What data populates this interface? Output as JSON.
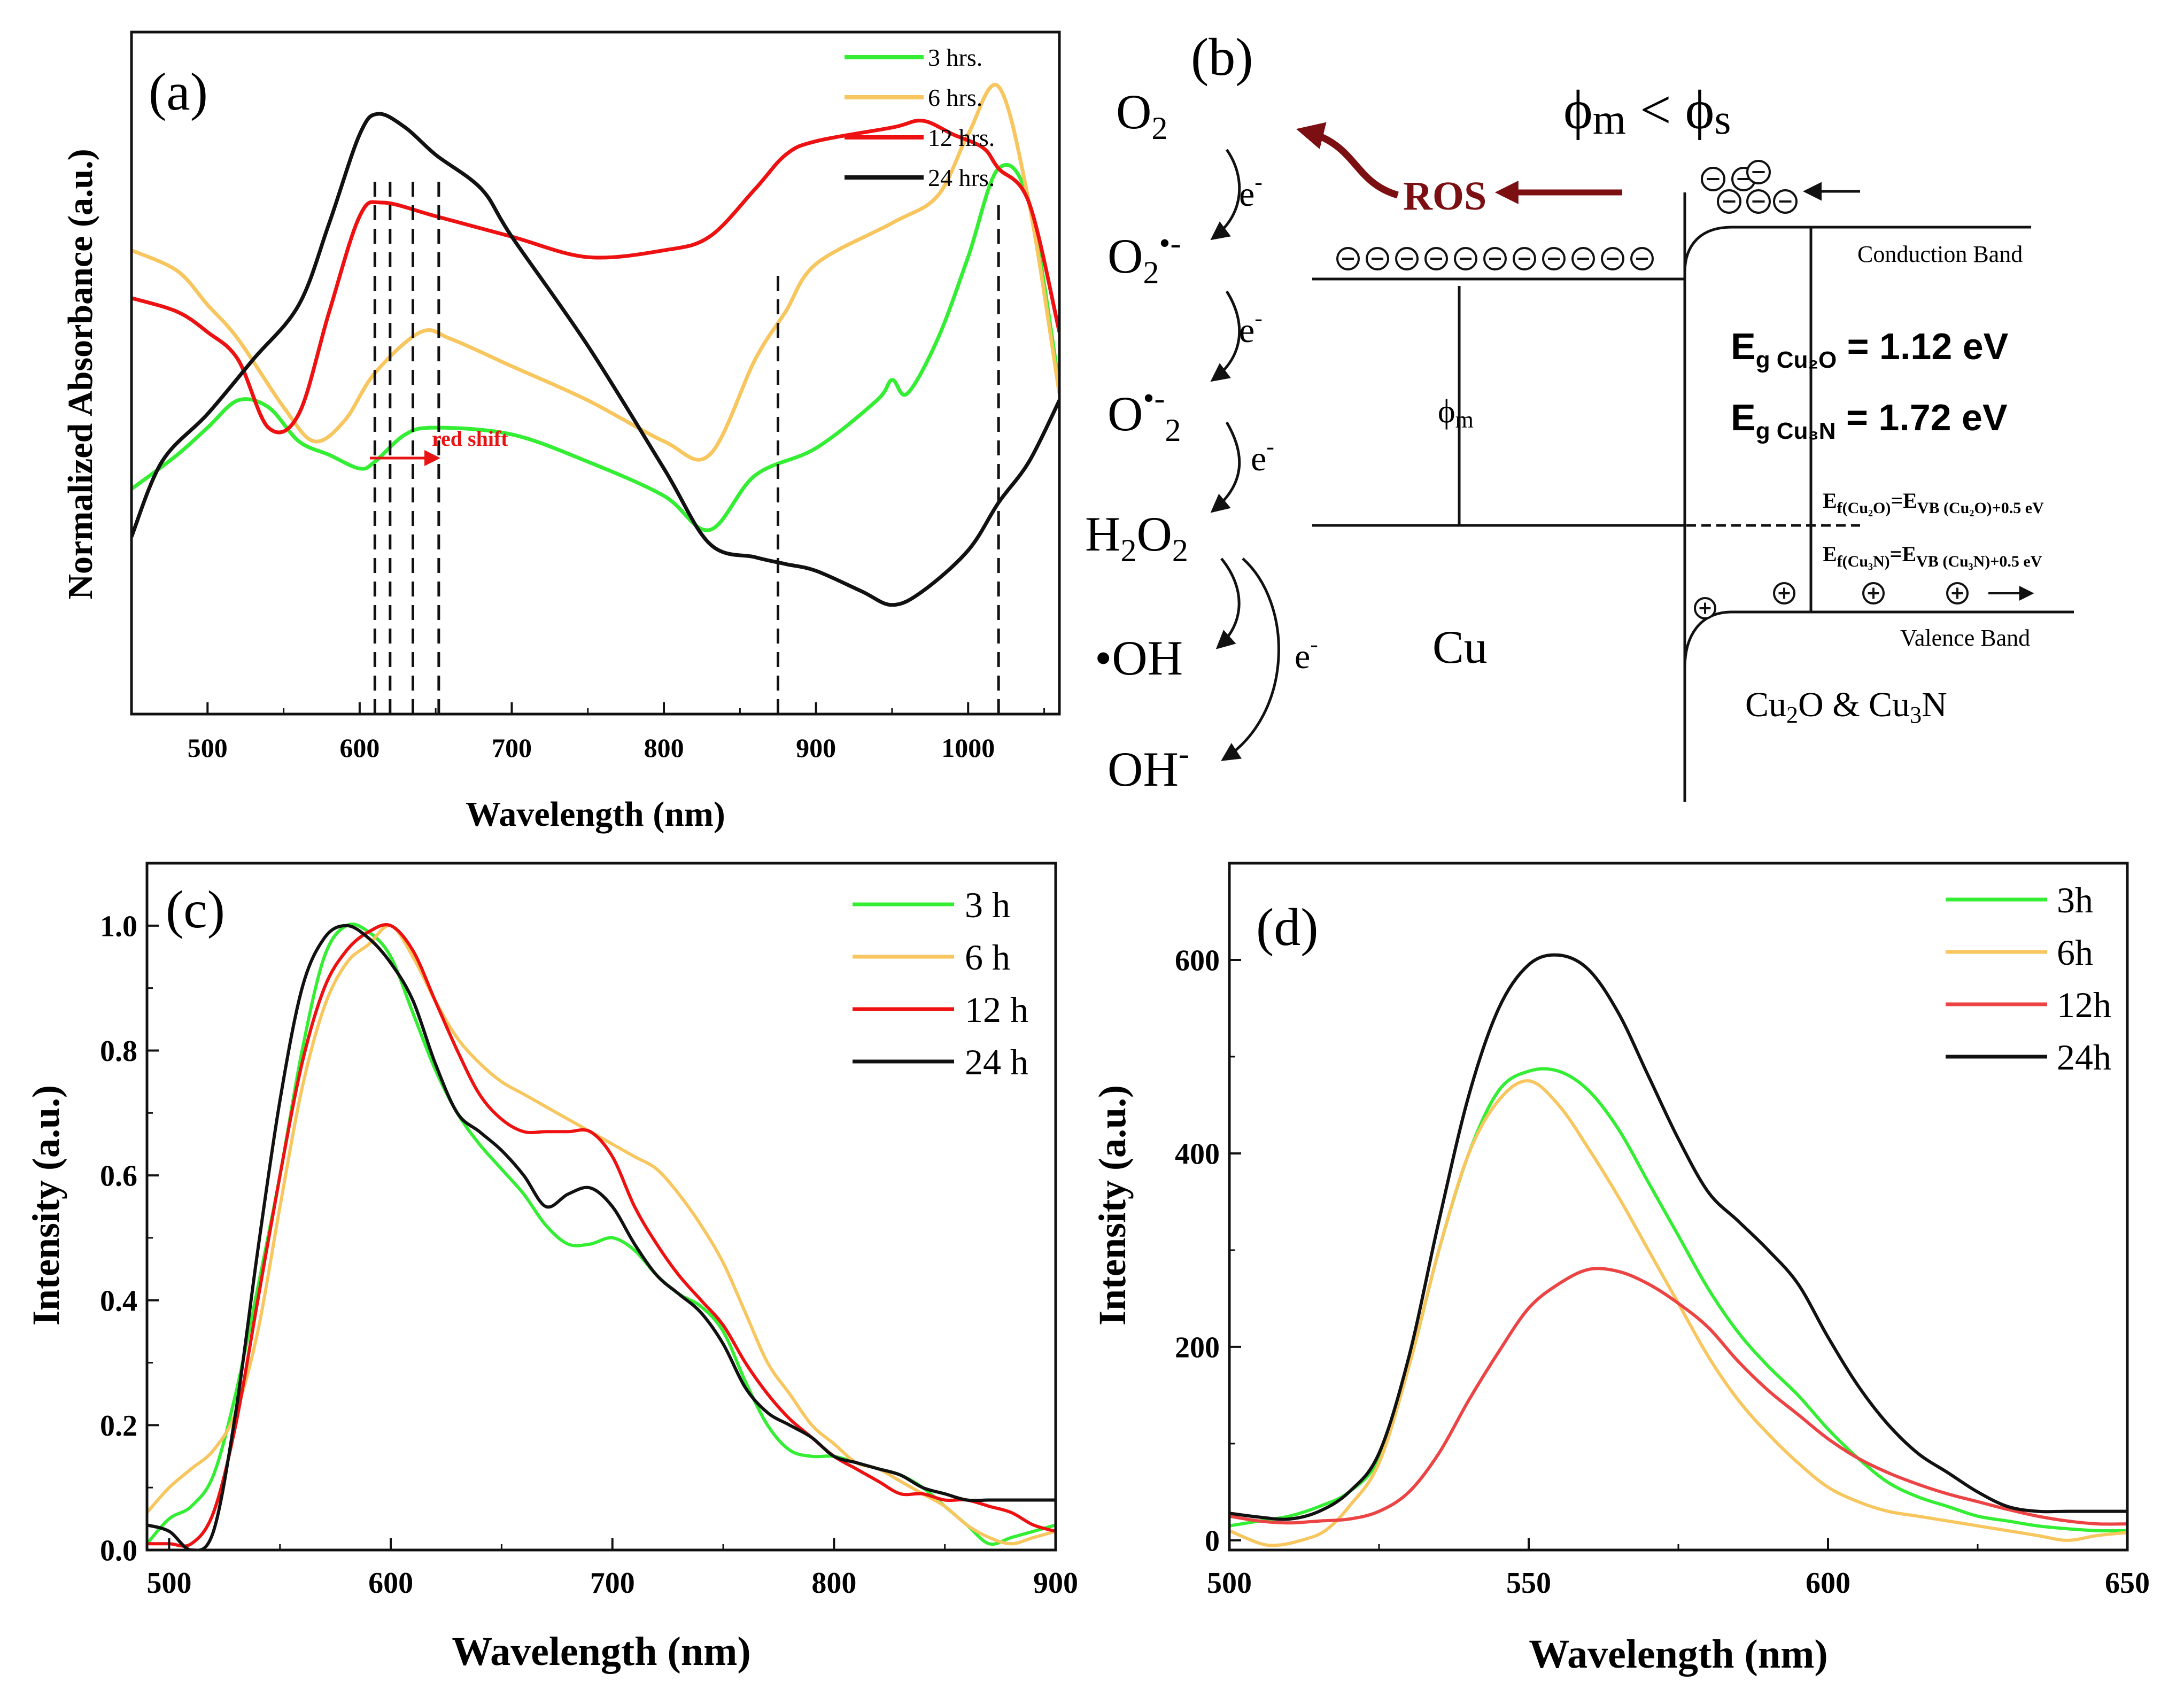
{
  "colors": {
    "green": "#33ee33",
    "yellow": "#f7c65e",
    "red": "#ee1111",
    "black": "#111111",
    "ros": "#7b0f12",
    "redshift": "#e81313",
    "d_yellow": "#e3c83a",
    "d_red": "#ec4444"
  },
  "chart_data": [
    {
      "type": "line",
      "panel": "(a)",
      "xlabel": "Wavelength (nm)",
      "ylabel": "Normalized Absorbance (a.u.)",
      "xlim": [
        450,
        1060
      ],
      "ylim": [
        0,
        1
      ],
      "xticks": [
        "500",
        "600",
        "700",
        "800",
        "900",
        "1000"
      ],
      "legend": [
        "3 hrs.",
        "6 hrs.",
        "12 hrs.",
        "24 hrs."
      ],
      "annotation": "red shift",
      "dashed_lines": [
        610,
        620,
        635,
        652,
        875,
        1020
      ],
      "series": [
        {
          "name": "3 hrs.",
          "color": "green",
          "x": [
            450,
            480,
            500,
            520,
            540,
            560,
            580,
            600,
            610,
            630,
            650,
            700,
            750,
            800,
            830,
            860,
            900,
            940,
            950,
            960,
            980,
            1000,
            1020,
            1040,
            1060
          ],
          "y": [
            0.33,
            0.38,
            0.42,
            0.46,
            0.45,
            0.4,
            0.38,
            0.36,
            0.37,
            0.41,
            0.42,
            0.41,
            0.37,
            0.32,
            0.27,
            0.35,
            0.39,
            0.46,
            0.49,
            0.47,
            0.55,
            0.67,
            0.8,
            0.75,
            0.48
          ]
        },
        {
          "name": "6 hrs.",
          "color": "yellow",
          "x": [
            450,
            480,
            500,
            520,
            550,
            570,
            590,
            610,
            640,
            660,
            700,
            750,
            800,
            830,
            860,
            880,
            900,
            950,
            980,
            1000,
            1020,
            1040,
            1060
          ],
          "y": [
            0.68,
            0.65,
            0.6,
            0.55,
            0.45,
            0.4,
            0.43,
            0.5,
            0.56,
            0.55,
            0.51,
            0.46,
            0.4,
            0.38,
            0.52,
            0.59,
            0.66,
            0.72,
            0.76,
            0.85,
            0.92,
            0.75,
            0.47
          ]
        },
        {
          "name": "12 hrs.",
          "color": "red",
          "x": [
            450,
            480,
            500,
            520,
            540,
            560,
            580,
            600,
            615,
            650,
            700,
            750,
            800,
            830,
            860,
            880,
            900,
            950,
            970,
            990,
            1010,
            1020,
            1040,
            1060
          ],
          "y": [
            0.61,
            0.59,
            0.56,
            0.52,
            0.42,
            0.44,
            0.59,
            0.73,
            0.75,
            0.73,
            0.7,
            0.67,
            0.68,
            0.7,
            0.77,
            0.82,
            0.84,
            0.86,
            0.87,
            0.85,
            0.83,
            0.8,
            0.75,
            0.56
          ]
        },
        {
          "name": "24 hrs.",
          "color": "black",
          "x": [
            450,
            470,
            500,
            530,
            560,
            580,
            600,
            612,
            630,
            650,
            680,
            700,
            750,
            800,
            830,
            860,
            880,
            900,
            930,
            950,
            970,
            1000,
            1020,
            1040,
            1060
          ],
          "y": [
            0.26,
            0.37,
            0.44,
            0.52,
            0.6,
            0.72,
            0.85,
            0.88,
            0.86,
            0.82,
            0.77,
            0.7,
            0.54,
            0.36,
            0.25,
            0.23,
            0.22,
            0.21,
            0.18,
            0.16,
            0.18,
            0.24,
            0.31,
            0.37,
            0.46
          ]
        }
      ]
    },
    {
      "type": "line",
      "panel": "(c)",
      "xlabel": "Wavelength (nm)",
      "ylabel": "Intensity (a.u.)",
      "xlim": [
        490,
        900
      ],
      "ylim": [
        0,
        1.1
      ],
      "xticks": [
        "500",
        "600",
        "700",
        "800",
        "900"
      ],
      "yticks": [
        "0.0",
        "0.2",
        "0.4",
        "0.6",
        "0.8",
        "1.0"
      ],
      "legend": [
        "3 h",
        "6 h",
        "12 h",
        "24 h"
      ],
      "series": [
        {
          "name": "3 h",
          "color": "green",
          "x": [
            490,
            500,
            510,
            520,
            530,
            540,
            550,
            560,
            570,
            580,
            590,
            600,
            610,
            620,
            630,
            640,
            650,
            660,
            670,
            680,
            690,
            700,
            710,
            720,
            730,
            740,
            750,
            760,
            770,
            780,
            790,
            800,
            810,
            820,
            830,
            840,
            850,
            860,
            870,
            880,
            890,
            900
          ],
          "y": [
            0.01,
            0.05,
            0.07,
            0.12,
            0.25,
            0.42,
            0.6,
            0.8,
            0.95,
            1.0,
            0.99,
            0.95,
            0.86,
            0.77,
            0.7,
            0.65,
            0.61,
            0.57,
            0.52,
            0.49,
            0.49,
            0.5,
            0.48,
            0.44,
            0.41,
            0.39,
            0.35,
            0.27,
            0.2,
            0.16,
            0.15,
            0.15,
            0.14,
            0.13,
            0.12,
            0.1,
            0.07,
            0.04,
            0.01,
            0.02,
            0.03,
            0.04
          ]
        },
        {
          "name": "6 h",
          "color": "yellow",
          "x": [
            490,
            500,
            510,
            520,
            530,
            540,
            550,
            560,
            570,
            580,
            590,
            600,
            610,
            620,
            630,
            640,
            650,
            660,
            670,
            680,
            690,
            700,
            710,
            720,
            730,
            740,
            750,
            760,
            770,
            780,
            790,
            800,
            810,
            820,
            830,
            840,
            850,
            860,
            870,
            880,
            890,
            900
          ],
          "y": [
            0.06,
            0.1,
            0.13,
            0.16,
            0.22,
            0.35,
            0.55,
            0.74,
            0.87,
            0.94,
            0.97,
            1.0,
            0.95,
            0.88,
            0.82,
            0.78,
            0.75,
            0.73,
            0.71,
            0.69,
            0.67,
            0.65,
            0.63,
            0.61,
            0.57,
            0.52,
            0.46,
            0.38,
            0.3,
            0.25,
            0.2,
            0.17,
            0.14,
            0.13,
            0.11,
            0.09,
            0.07,
            0.04,
            0.02,
            0.01,
            0.02,
            0.03
          ]
        },
        {
          "name": "12 h",
          "color": "red",
          "x": [
            490,
            500,
            510,
            520,
            530,
            540,
            550,
            560,
            570,
            580,
            590,
            600,
            610,
            620,
            630,
            640,
            650,
            660,
            670,
            680,
            690,
            700,
            710,
            720,
            730,
            740,
            750,
            760,
            770,
            780,
            790,
            800,
            810,
            820,
            830,
            840,
            850,
            860,
            870,
            880,
            890,
            900
          ],
          "y": [
            0.01,
            0.01,
            0.01,
            0.06,
            0.2,
            0.4,
            0.6,
            0.78,
            0.9,
            0.96,
            0.99,
            1.0,
            0.96,
            0.88,
            0.8,
            0.73,
            0.69,
            0.67,
            0.67,
            0.67,
            0.67,
            0.63,
            0.55,
            0.49,
            0.44,
            0.4,
            0.36,
            0.3,
            0.25,
            0.21,
            0.18,
            0.15,
            0.13,
            0.11,
            0.09,
            0.09,
            0.08,
            0.08,
            0.07,
            0.06,
            0.04,
            0.03
          ]
        },
        {
          "name": "24 h",
          "color": "black",
          "x": [
            490,
            500,
            510,
            520,
            530,
            540,
            550,
            560,
            570,
            580,
            590,
            600,
            610,
            620,
            630,
            640,
            650,
            660,
            670,
            680,
            690,
            700,
            710,
            720,
            730,
            740,
            750,
            760,
            770,
            780,
            790,
            800,
            810,
            820,
            830,
            840,
            850,
            860,
            870,
            880,
            890,
            900
          ],
          "y": [
            0.04,
            0.03,
            0.0,
            0.03,
            0.22,
            0.48,
            0.72,
            0.9,
            0.98,
            1.0,
            0.98,
            0.94,
            0.88,
            0.78,
            0.7,
            0.67,
            0.64,
            0.6,
            0.55,
            0.57,
            0.58,
            0.55,
            0.49,
            0.44,
            0.41,
            0.38,
            0.33,
            0.26,
            0.22,
            0.2,
            0.18,
            0.15,
            0.14,
            0.13,
            0.12,
            0.1,
            0.09,
            0.08,
            0.08,
            0.08,
            0.08,
            0.08
          ]
        }
      ]
    },
    {
      "type": "line",
      "panel": "(d)",
      "xlabel": "Wavelength (nm)",
      "ylabel": "Intensity (a.u.)",
      "xlim": [
        500,
        650
      ],
      "ylim": [
        -10,
        700
      ],
      "xticks": [
        "500",
        "550",
        "600",
        "650"
      ],
      "yticks": [
        "0",
        "200",
        "400",
        "600"
      ],
      "legend": [
        "3h",
        "6h",
        "12h",
        "24h"
      ],
      "series": [
        {
          "name": "3h",
          "color": "green",
          "x": [
            500,
            505,
            510,
            515,
            520,
            525,
            530,
            535,
            540,
            545,
            550,
            555,
            560,
            565,
            570,
            575,
            580,
            585,
            590,
            595,
            600,
            605,
            610,
            615,
            620,
            625,
            630,
            635,
            640,
            645,
            650
          ],
          "y": [
            15,
            20,
            25,
            35,
            50,
            85,
            180,
            300,
            400,
            465,
            485,
            485,
            465,
            425,
            370,
            315,
            260,
            215,
            180,
            150,
            115,
            85,
            60,
            45,
            35,
            25,
            20,
            15,
            12,
            10,
            10
          ]
        },
        {
          "name": "6h",
          "color": "yellow",
          "x": [
            500,
            505,
            508,
            512,
            516,
            520,
            525,
            530,
            535,
            540,
            545,
            550,
            555,
            560,
            565,
            570,
            575,
            580,
            585,
            590,
            595,
            600,
            605,
            610,
            615,
            620,
            625,
            630,
            635,
            640,
            645,
            650
          ],
          "y": [
            10,
            -3,
            -5,
            0,
            10,
            35,
            80,
            180,
            300,
            400,
            455,
            475,
            450,
            405,
            355,
            300,
            245,
            190,
            145,
            110,
            80,
            55,
            40,
            30,
            25,
            20,
            15,
            10,
            5,
            0,
            5,
            8
          ]
        },
        {
          "name": "12h",
          "color": "d_red",
          "x": [
            500,
            505,
            510,
            515,
            520,
            525,
            530,
            535,
            540,
            545,
            550,
            555,
            560,
            565,
            570,
            575,
            580,
            585,
            590,
            595,
            600,
            605,
            610,
            615,
            620,
            625,
            630,
            635,
            640,
            645,
            650
          ],
          "y": [
            25,
            20,
            18,
            20,
            22,
            30,
            50,
            90,
            145,
            195,
            240,
            265,
            280,
            278,
            265,
            245,
            220,
            185,
            155,
            130,
            105,
            85,
            70,
            58,
            48,
            40,
            32,
            25,
            20,
            17,
            17
          ]
        },
        {
          "name": "24h",
          "color": "black",
          "x": [
            500,
            505,
            510,
            515,
            520,
            525,
            530,
            535,
            540,
            545,
            550,
            555,
            560,
            565,
            570,
            575,
            580,
            585,
            590,
            595,
            600,
            605,
            610,
            615,
            620,
            625,
            630,
            635,
            640,
            645,
            650
          ],
          "y": [
            28,
            24,
            22,
            30,
            50,
            90,
            190,
            330,
            460,
            550,
            595,
            605,
            590,
            545,
            480,
            415,
            360,
            330,
            300,
            265,
            210,
            160,
            120,
            90,
            70,
            50,
            35,
            30,
            30,
            30,
            30
          ]
        }
      ]
    }
  ],
  "panel_b": {
    "label": "(b)",
    "o2": "O2",
    "o2_radical": "O2•-",
    "o_radical2": "O•-2",
    "h2o2": "H2O2",
    "oh_radical": "•OH",
    "oh_minus": "OH-",
    "electron": "e-",
    "ros": "ROS",
    "phi_condition": "ϕm < ϕs",
    "phi_m": "ϕm",
    "conduction_band": "Conduction Band",
    "valence_band": "Valence Band",
    "eg_cu2o": "Eg Cu2O = 1.12 eV",
    "eg_cu3n": "Eg Cu3N = 1.72 eV",
    "ef_cu2o": "Ef(Cu2O)=EVB (Cu2O)+0.5 eV",
    "ef_cu3n": "Ef(Cu3N)=EVB (Cu3N)+0.5 eV",
    "metal": "Cu",
    "semiconductor": "Cu2O & Cu3N"
  }
}
